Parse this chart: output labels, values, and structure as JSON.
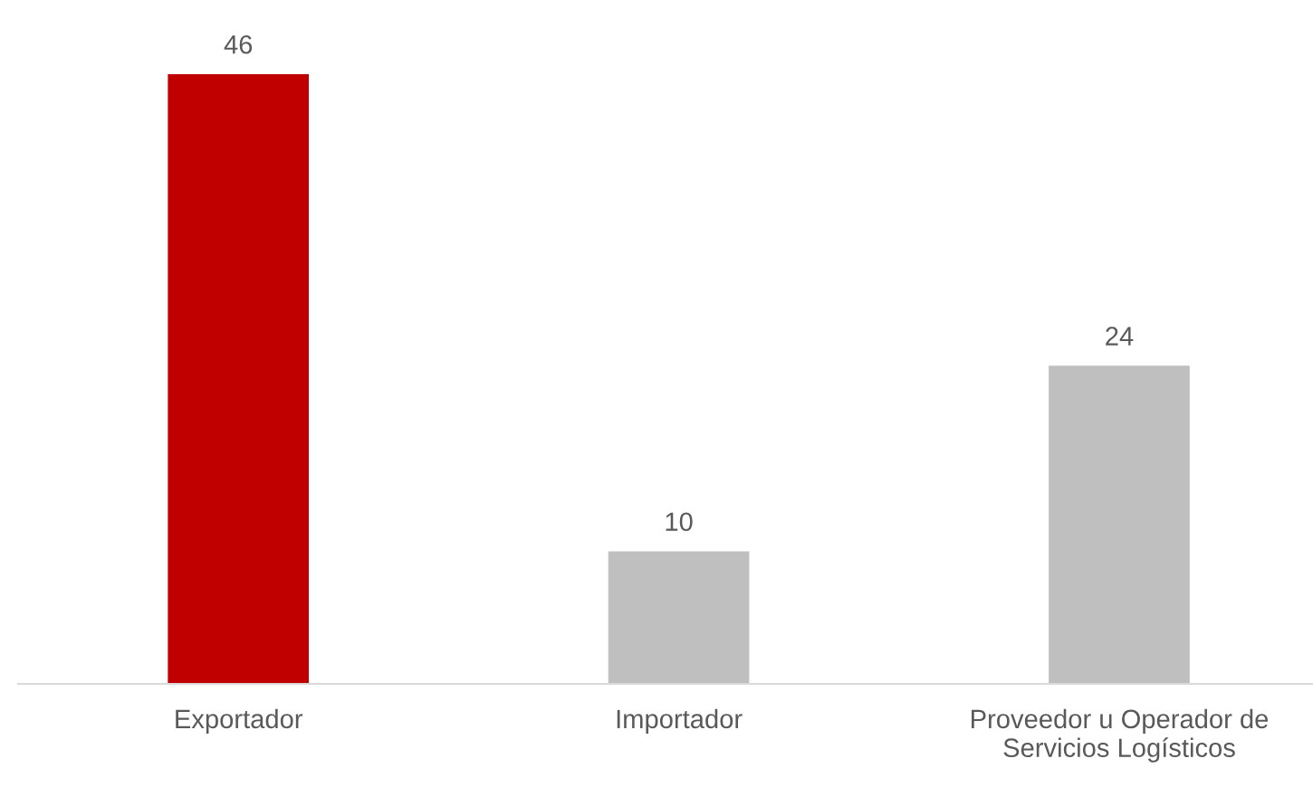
{
  "chart_data": {
    "type": "bar",
    "categories": [
      "Exportador",
      "Importador",
      "Proveedor u Operador de\nServicios Logísticos"
    ],
    "values": [
      46,
      10,
      24
    ],
    "colors": [
      "#c00000",
      "#bfbfbf",
      "#bfbfbf"
    ],
    "data_labels": true,
    "grid": false,
    "legend": false,
    "tick_labels": "x"
  }
}
